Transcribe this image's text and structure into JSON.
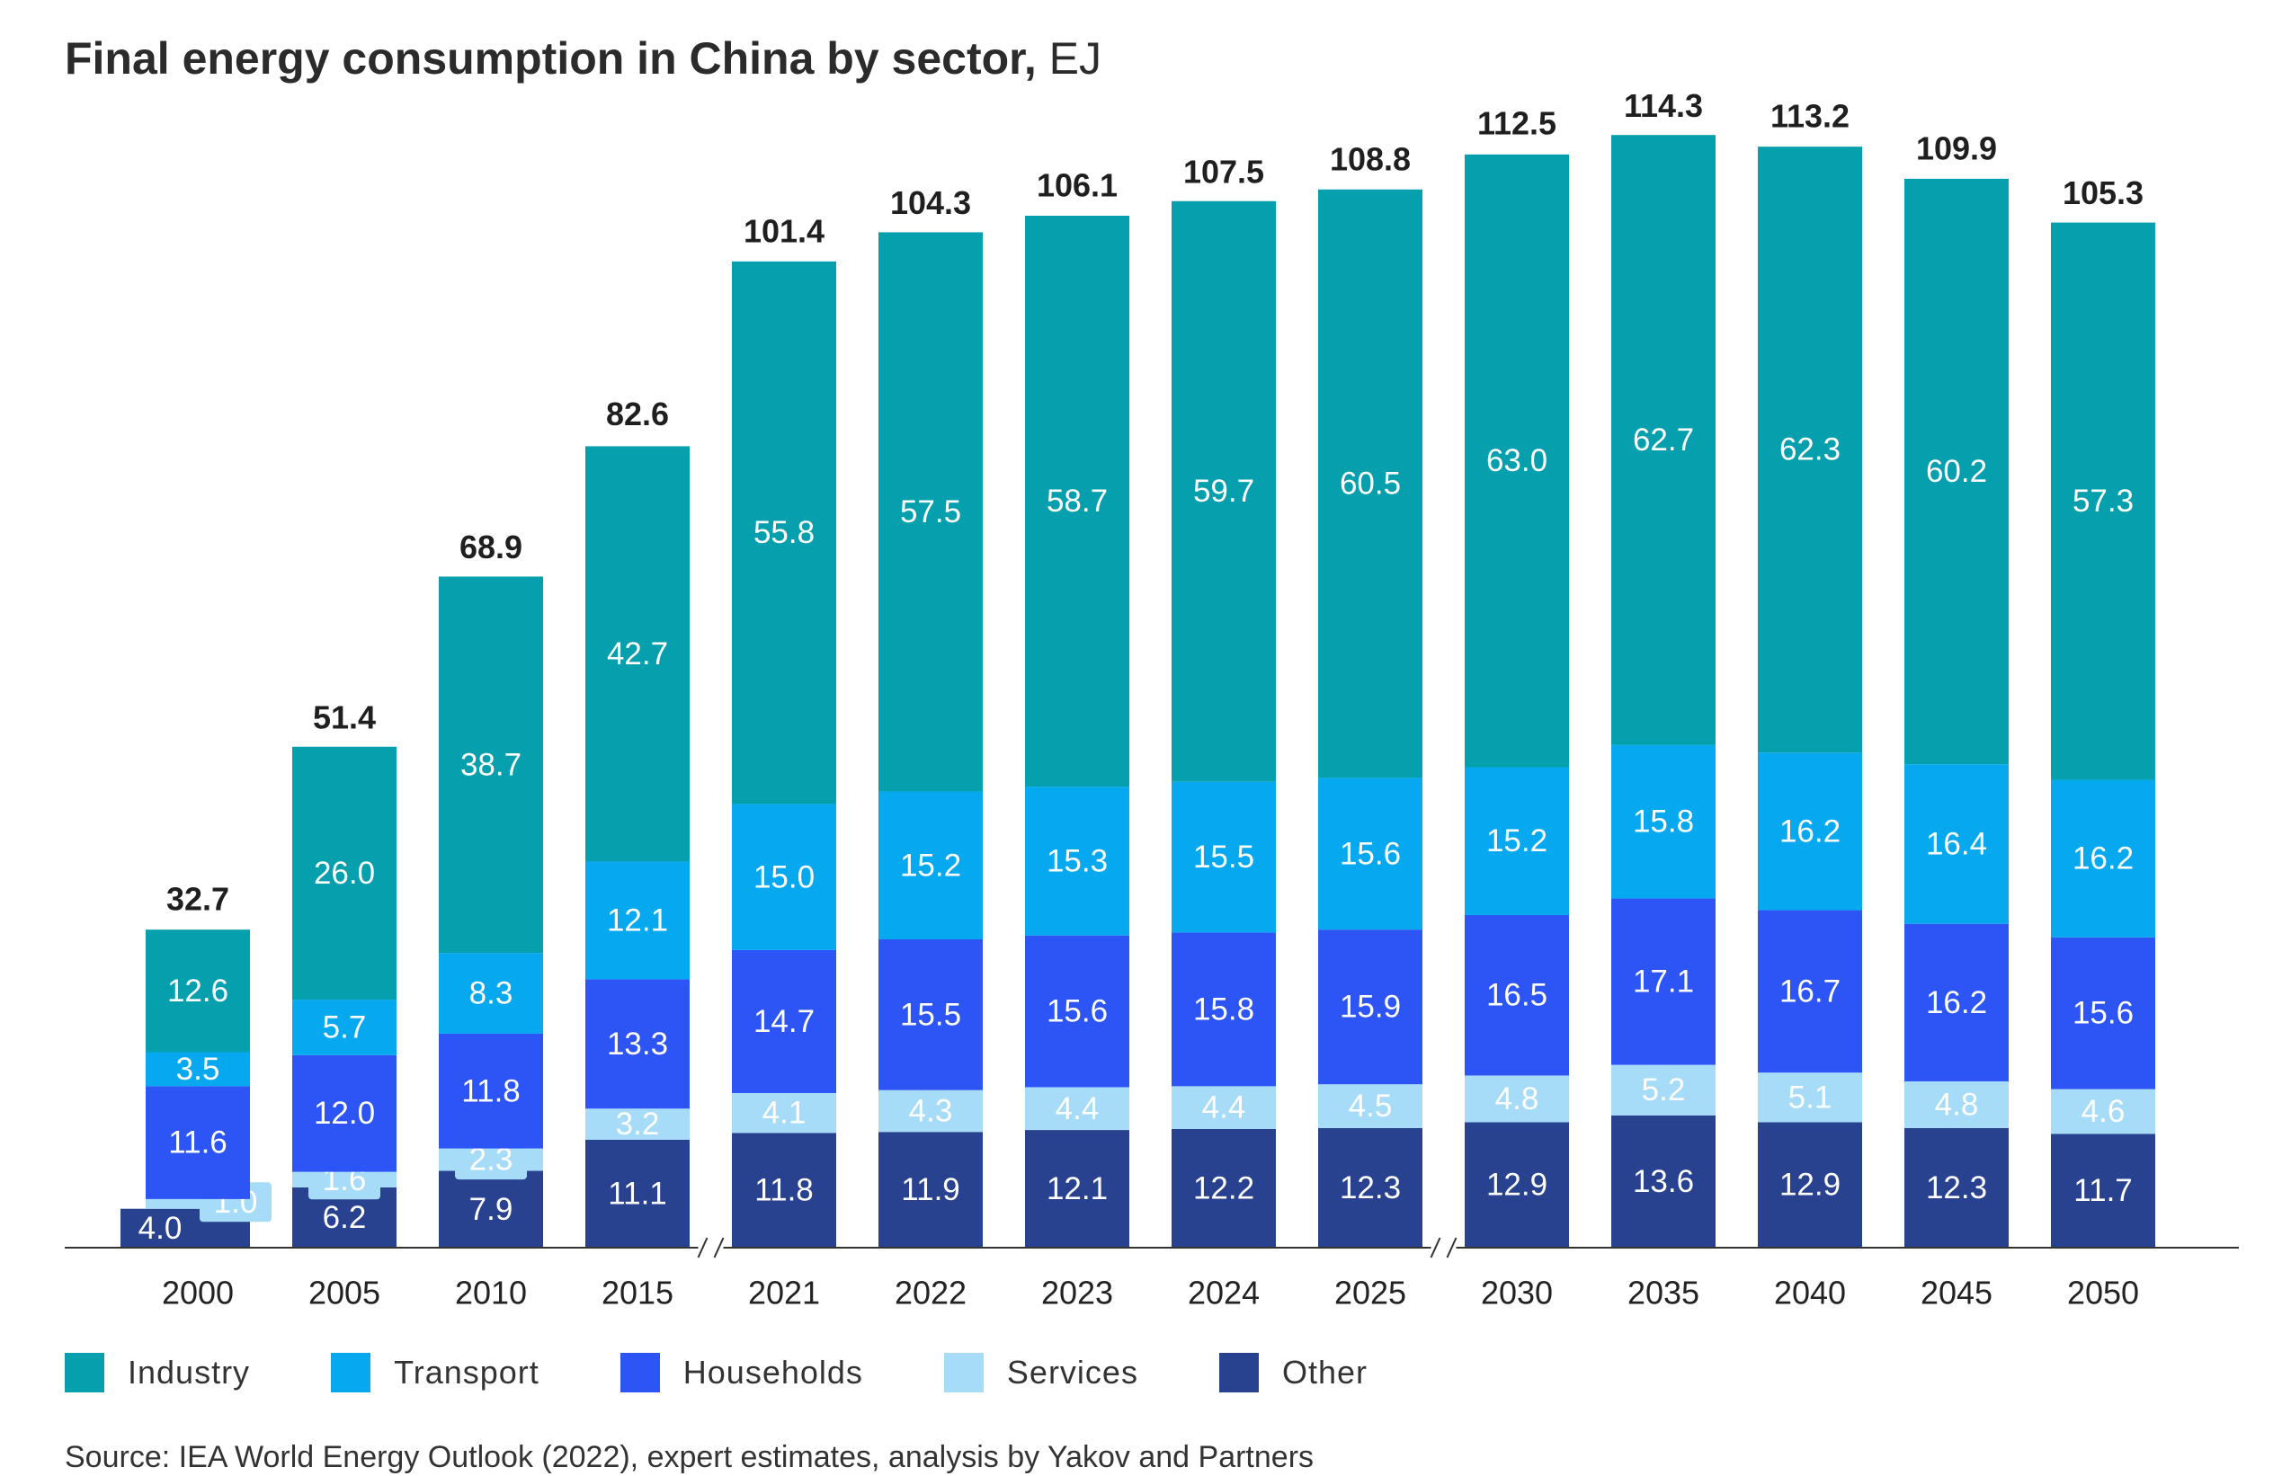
{
  "title": {
    "main": "Final energy consumption in China by sector,",
    "unit": "EJ"
  },
  "colors": {
    "industry": "#069fae",
    "transport": "#06a9f0",
    "households": "#2d55f5",
    "services": "#a6dcf8",
    "other": "#284290",
    "axis": "#333333",
    "text_dark": "#1f1f1f"
  },
  "chart_data": {
    "type": "bar",
    "stacked": true,
    "title": "Final energy consumption in China by sector, EJ",
    "xlabel": "",
    "ylabel": "EJ",
    "ylim": [
      0,
      120
    ],
    "categories": [
      "2000",
      "2005",
      "2010",
      "2015",
      "2021",
      "2022",
      "2023",
      "2024",
      "2025",
      "2030",
      "2035",
      "2040",
      "2045",
      "2050"
    ],
    "axis_breaks_after": [
      "2015",
      "2025"
    ],
    "series": [
      {
        "name": "Other",
        "key": "other",
        "values": [
          4.0,
          6.2,
          7.9,
          11.1,
          11.8,
          11.9,
          12.1,
          12.2,
          12.3,
          12.9,
          13.6,
          12.9,
          12.3,
          11.7
        ]
      },
      {
        "name": "Services",
        "key": "services",
        "values": [
          1.0,
          1.6,
          2.3,
          3.2,
          4.1,
          4.3,
          4.4,
          4.4,
          4.5,
          4.8,
          5.2,
          5.1,
          4.8,
          4.6
        ]
      },
      {
        "name": "Households",
        "key": "households",
        "values": [
          11.6,
          12.0,
          11.8,
          13.3,
          14.7,
          15.5,
          15.6,
          15.8,
          15.9,
          16.5,
          17.1,
          16.7,
          16.2,
          15.6
        ]
      },
      {
        "name": "Transport",
        "key": "transport",
        "values": [
          3.5,
          5.7,
          8.3,
          12.1,
          15.0,
          15.2,
          15.3,
          15.5,
          15.6,
          15.2,
          15.8,
          16.2,
          16.4,
          16.2
        ]
      },
      {
        "name": "Industry",
        "key": "industry",
        "values": [
          12.6,
          26.0,
          38.7,
          42.7,
          55.8,
          57.5,
          58.7,
          59.7,
          60.5,
          63.0,
          62.7,
          62.3,
          60.2,
          57.3
        ]
      }
    ],
    "totals": [
      32.7,
      51.4,
      68.9,
      82.6,
      101.4,
      104.3,
      106.1,
      107.5,
      108.8,
      112.5,
      114.3,
      113.2,
      109.9,
      105.3
    ],
    "legend": [
      "Industry",
      "Transport",
      "Households",
      "Services",
      "Other"
    ]
  },
  "source": "Source: IEA World Energy Outlook (2022), expert estimates, analysis by Yakov and Partners"
}
